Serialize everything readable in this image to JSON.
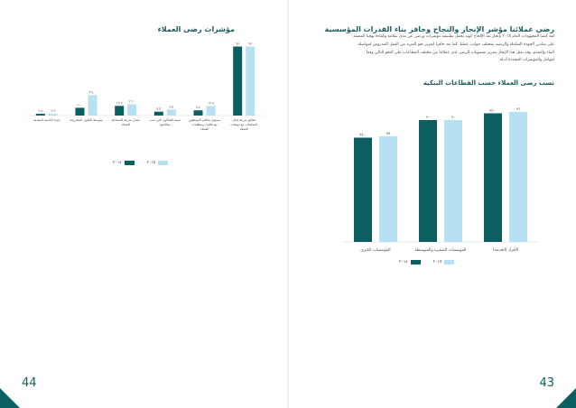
{
  "colors": {
    "dark": "#0b5f60",
    "light": "#b7e0f2",
    "accent": "#1d5a5c"
  },
  "left_page": {
    "title": "مؤشرات رضى العملاء",
    "page_number": "44",
    "legend": {
      "dark_label": "٢٠١٤",
      "light_label": "٢٠١٥"
    }
  },
  "right_page": {
    "title": "رضى عملائنا مؤشر الإنجاز والنجاح وحافز بناء القدرات المؤسسية",
    "paragraph_lines": [
      "لقد كثفنا المجهودات العام ٢٠١٥ بإنجاز بعد الإلحاح كونه يحمل بطبيعته مؤشرات ورضى عن مدى سلامة وكفاءة نهجنا المعتمد",
      "على ميادين الجودة الشاملة والرصيد بمختلف جوانب عملنا، كما يعد حافزا لتعزيز نحو المزيد من العمل المدروس لمواصلة",
      "البناء والتقدم، وقد تمثل هذا الإنجاز بتعزيز مستويات الرضى لدى عملائنا من مختلف القطاعات على النحو التالي وفقا",
      "لعوامل والمؤشرات المحددة أدناه:"
    ],
    "subtitle": "نسب رضى العملاء حسب القطاعات البنكية",
    "page_number": "43",
    "legend": {
      "dark_label": "٢٠١٤",
      "light_label": "٢٠١٥"
    }
  },
  "chart_data": [
    {
      "type": "bar",
      "title": "مؤشرات رضى العملاء",
      "categories": [
        "تطابق سرعة إنجاز المعاملات مع توقعات العملاء",
        "مستوى تعاطي الموظفين مع طلبات ومتطلبات العملاء",
        "نسبة الشكاوى التي تمت معالجتها",
        "معدل سرعة الاستجابة للعملاء",
        "متوسط الحلول المطروحة",
        "جودة الخدمة المقدمة"
      ],
      "series": [
        {
          "name": "٢٠١٤",
          "values": [
            98,
            7.4,
            5.5,
            13.7,
            11.0,
            2.5
          ],
          "labels": [
            "٩٨",
            "٧.٤",
            "٥.٥",
            "١٣.٧",
            "١١.٠",
            "٢.٥"
          ]
        },
        {
          "name": "٢٠١٥",
          "values": [
            98,
            13.7,
            8.5,
            16.0,
            29.0,
            2.3
          ],
          "labels": [
            "٩٨",
            "١٣.٧",
            "٨.٥",
            "١٦.٠",
            "٢٩.٠",
            "٢.٣"
          ]
        }
      ],
      "ylim": [
        0,
        100
      ],
      "legend_position": "bottom"
    },
    {
      "type": "bar",
      "title": "نسب رضى العملاء حسب القطاعات البنكية",
      "categories": [
        "الأفراد (الخدمة)",
        "المؤسسات الصغيرة والمتوسطة",
        "المؤسسات الكبرى"
      ],
      "series": [
        {
          "name": "٢٠١٤",
          "values": [
            95.0,
            90.0,
            77.0
          ],
          "labels": [
            "٩٥.٠",
            "٩٠",
            "٧٧.٠"
          ]
        },
        {
          "name": "٢٠١٥",
          "values": [
            96.0,
            90.0,
            78.0
          ],
          "labels": [
            "٩٦",
            "٩٠",
            "٧٨"
          ]
        }
      ],
      "ylim": [
        0,
        100
      ],
      "legend_position": "bottom"
    }
  ]
}
